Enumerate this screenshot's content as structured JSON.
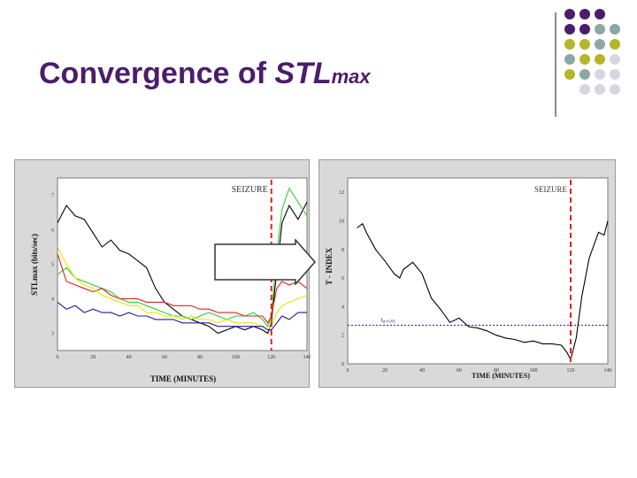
{
  "slide": {
    "title_main": "Convergence of ",
    "title_em": "STL",
    "title_sub": "max"
  },
  "colors": {
    "title": "#4b1d6b",
    "dot_purple": "#4b1d6b",
    "dot_teal": "#8fa6a6",
    "dot_olive": "#b5b52a",
    "dot_grey": "#d6d6e0",
    "seizure_line": "#e02020"
  },
  "decor": {
    "dot_grid": [
      [
        "purple",
        "purple",
        "purple",
        "none"
      ],
      [
        "purple",
        "purple",
        "teal",
        "teal"
      ],
      [
        "olive",
        "olive",
        "teal",
        "olive"
      ],
      [
        "teal",
        "olive",
        "olive",
        "grey"
      ],
      [
        "olive",
        "teal",
        "grey",
        "grey"
      ],
      [
        "none",
        "grey",
        "grey",
        "grey"
      ]
    ]
  },
  "left_chart": {
    "ylabel": "STLmax (bits/sec)",
    "xlabel": "TIME (MINUTES)",
    "annotation": "SEIZURE",
    "x_ticks": [
      "0",
      "20",
      "40",
      "60",
      "80",
      "100",
      "120",
      "140"
    ],
    "y_ticks": [
      "3",
      "4",
      "5",
      "6",
      "7"
    ],
    "chart_data": {
      "type": "line",
      "title": "",
      "xlabel": "TIME (MINUTES)",
      "ylabel": "STLmax (bits/sec)",
      "xlim": [
        0,
        140
      ],
      "ylim": [
        2.5,
        7.5
      ],
      "seizure_x": 120,
      "series": [
        {
          "name": "black",
          "color": "#000000",
          "x": [
            0,
            5,
            10,
            15,
            20,
            25,
            30,
            35,
            40,
            45,
            50,
            55,
            60,
            65,
            70,
            75,
            80,
            85,
            90,
            95,
            100,
            105,
            110,
            115,
            118,
            120,
            123,
            126,
            130,
            135,
            140
          ],
          "values": [
            6.2,
            6.7,
            6.4,
            6.3,
            5.9,
            5.5,
            5.7,
            5.4,
            5.3,
            5.1,
            4.9,
            4.3,
            3.9,
            3.7,
            3.5,
            3.4,
            3.3,
            3.2,
            3.0,
            3.1,
            3.2,
            3.1,
            3.2,
            3.1,
            3.0,
            3.3,
            4.8,
            6.2,
            6.7,
            6.3,
            6.8
          ]
        },
        {
          "name": "green",
          "color": "#33cc33",
          "x": [
            0,
            5,
            10,
            15,
            20,
            25,
            30,
            35,
            40,
            45,
            50,
            55,
            60,
            65,
            70,
            75,
            80,
            85,
            90,
            95,
            100,
            105,
            110,
            115,
            118,
            120,
            123,
            126,
            130,
            135,
            140
          ],
          "values": [
            4.7,
            4.9,
            4.6,
            4.5,
            4.4,
            4.3,
            4.2,
            4.0,
            3.9,
            3.9,
            3.8,
            3.7,
            3.6,
            3.5,
            3.5,
            3.4,
            3.5,
            3.6,
            3.5,
            3.4,
            3.5,
            3.5,
            3.6,
            3.4,
            3.2,
            3.5,
            5.3,
            6.6,
            7.2,
            6.8,
            6.4
          ]
        },
        {
          "name": "red",
          "color": "#e02020",
          "x": [
            0,
            5,
            10,
            15,
            20,
            25,
            30,
            35,
            40,
            45,
            50,
            55,
            60,
            65,
            70,
            75,
            80,
            85,
            90,
            95,
            100,
            105,
            110,
            115,
            118,
            120,
            123,
            126,
            130,
            135,
            140
          ],
          "values": [
            5.3,
            4.5,
            4.4,
            4.3,
            4.2,
            4.3,
            4.1,
            4.0,
            4.0,
            4.0,
            3.9,
            3.9,
            3.9,
            3.8,
            3.8,
            3.8,
            3.7,
            3.7,
            3.6,
            3.6,
            3.6,
            3.5,
            3.5,
            3.5,
            3.3,
            3.5,
            4.3,
            4.5,
            4.4,
            4.5,
            4.3
          ]
        },
        {
          "name": "yellow",
          "color": "#e6e600",
          "x": [
            0,
            5,
            10,
            15,
            20,
            25,
            30,
            35,
            40,
            45,
            50,
            55,
            60,
            65,
            70,
            75,
            80,
            85,
            90,
            95,
            100,
            105,
            110,
            115,
            118,
            120,
            123,
            126,
            130,
            135,
            140
          ],
          "values": [
            5.5,
            5.0,
            4.6,
            4.4,
            4.3,
            4.1,
            4.0,
            3.9,
            3.8,
            3.8,
            3.6,
            3.6,
            3.5,
            3.5,
            3.4,
            3.5,
            3.4,
            3.4,
            3.3,
            3.4,
            3.3,
            3.3,
            3.3,
            3.2,
            3.1,
            3.2,
            3.6,
            3.8,
            3.9,
            4.0,
            4.1
          ]
        },
        {
          "name": "blue",
          "color": "#1a1aa6",
          "x": [
            0,
            5,
            10,
            15,
            20,
            25,
            30,
            35,
            40,
            45,
            50,
            55,
            60,
            65,
            70,
            75,
            80,
            85,
            90,
            95,
            100,
            105,
            110,
            115,
            118,
            120,
            123,
            126,
            130,
            135,
            140
          ],
          "values": [
            3.9,
            3.7,
            3.8,
            3.6,
            3.7,
            3.6,
            3.6,
            3.5,
            3.6,
            3.5,
            3.5,
            3.4,
            3.4,
            3.4,
            3.3,
            3.3,
            3.3,
            3.3,
            3.2,
            3.2,
            3.2,
            3.2,
            3.2,
            3.2,
            3.1,
            3.1,
            3.3,
            3.5,
            3.4,
            3.6,
            3.6
          ]
        }
      ]
    }
  },
  "right_chart": {
    "ylabel": "T - INDEX",
    "xlabel": "TIME    (MINUTES)",
    "annotation": "SEIZURE",
    "threshold_label": "t",
    "threshold_sub": "α=0.01",
    "x_ticks": [
      "0",
      "20",
      "40",
      "60",
      "80",
      "100",
      "120",
      "140"
    ],
    "y_ticks": [
      "0",
      "2",
      "4",
      "6",
      "8",
      "10",
      "12"
    ],
    "chart_data": {
      "type": "line",
      "title": "",
      "xlabel": "TIME (MINUTES)",
      "ylabel": "T - INDEX",
      "xlim": [
        0,
        140
      ],
      "ylim": [
        0,
        13
      ],
      "seizure_x": 120,
      "threshold_y": 2.7,
      "series": [
        {
          "name": "T-index",
          "color": "#000000",
          "x": [
            5,
            8,
            10,
            15,
            20,
            25,
            28,
            30,
            35,
            40,
            45,
            50,
            55,
            60,
            65,
            70,
            75,
            80,
            85,
            90,
            95,
            100,
            105,
            110,
            115,
            118,
            120,
            123,
            126,
            130,
            135,
            138,
            140
          ],
          "values": [
            9.5,
            9.8,
            9.2,
            8.0,
            7.2,
            6.3,
            6.0,
            6.6,
            7.1,
            6.3,
            4.6,
            3.8,
            2.9,
            3.2,
            2.6,
            2.5,
            2.3,
            2.0,
            1.8,
            1.7,
            1.5,
            1.6,
            1.4,
            1.4,
            1.3,
            0.8,
            0.3,
            1.8,
            4.7,
            7.4,
            9.2,
            9.0,
            10.0
          ]
        }
      ]
    }
  }
}
